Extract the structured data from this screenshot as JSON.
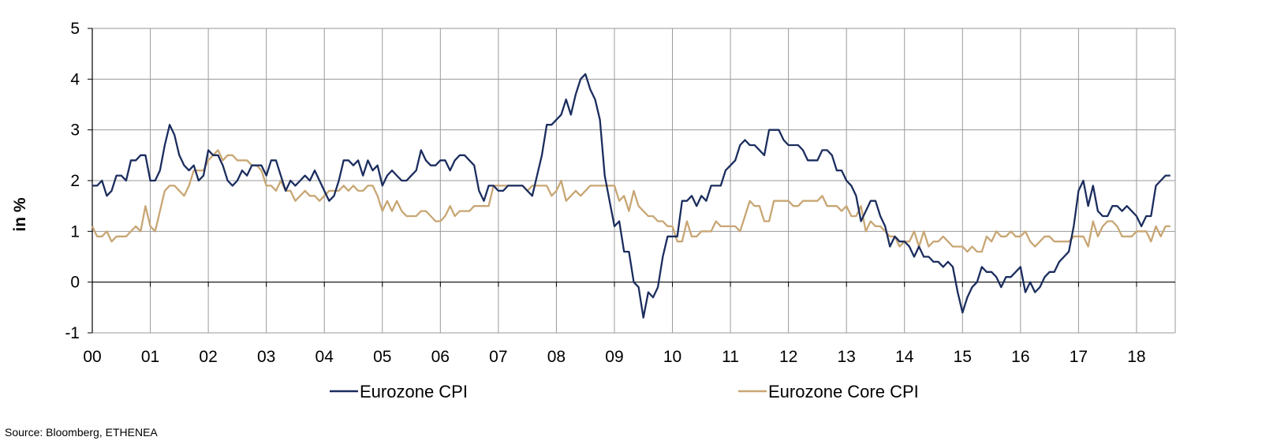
{
  "source": "Source: Bloomberg, ETHENEA",
  "chart_data": {
    "type": "line",
    "ylabel": "in %",
    "ylim": [
      -1,
      5
    ],
    "yticks": [
      -1,
      0,
      1,
      2,
      3,
      4,
      5
    ],
    "xlim": [
      2000.0,
      2018.667
    ],
    "xtick_labels": [
      "00",
      "01",
      "02",
      "03",
      "04",
      "05",
      "06",
      "07",
      "08",
      "09",
      "10",
      "11",
      "12",
      "13",
      "14",
      "15",
      "16",
      "17",
      "18"
    ],
    "grid": true,
    "legend_position": "bottom",
    "colors": {
      "Eurozone CPI": "#1b2d5e",
      "Eurozone Core CPI": "#c8a674"
    },
    "series": [
      {
        "name": "Eurozone CPI",
        "start": 2000.0,
        "step_months": 1,
        "values": [
          1.9,
          1.9,
          2.0,
          1.7,
          1.8,
          2.1,
          2.1,
          2.0,
          2.4,
          2.4,
          2.5,
          2.5,
          2.0,
          2.0,
          2.2,
          2.7,
          3.1,
          2.9,
          2.5,
          2.3,
          2.2,
          2.3,
          2.0,
          2.1,
          2.6,
          2.5,
          2.5,
          2.3,
          2.0,
          1.9,
          2.0,
          2.2,
          2.1,
          2.3,
          2.3,
          2.3,
          2.1,
          2.4,
          2.4,
          2.1,
          1.8,
          2.0,
          1.9,
          2.0,
          2.1,
          2.0,
          2.2,
          2.0,
          1.8,
          1.6,
          1.7,
          2.0,
          2.4,
          2.4,
          2.3,
          2.4,
          2.1,
          2.4,
          2.2,
          2.3,
          1.9,
          2.1,
          2.2,
          2.1,
          2.0,
          2.0,
          2.1,
          2.2,
          2.6,
          2.4,
          2.3,
          2.3,
          2.4,
          2.4,
          2.2,
          2.4,
          2.5,
          2.5,
          2.4,
          2.3,
          1.8,
          1.6,
          1.9,
          1.9,
          1.8,
          1.8,
          1.9,
          1.9,
          1.9,
          1.9,
          1.8,
          1.7,
          2.1,
          2.5,
          3.1,
          3.1,
          3.2,
          3.3,
          3.6,
          3.3,
          3.7,
          4.0,
          4.1,
          3.8,
          3.6,
          3.2,
          2.1,
          1.6,
          1.1,
          1.2,
          0.6,
          0.6,
          0.0,
          -0.1,
          -0.7,
          -0.2,
          -0.3,
          -0.1,
          0.5,
          0.9,
          0.9,
          0.9,
          1.6,
          1.6,
          1.7,
          1.5,
          1.7,
          1.6,
          1.9,
          1.9,
          1.9,
          2.2,
          2.3,
          2.4,
          2.7,
          2.8,
          2.7,
          2.7,
          2.6,
          2.5,
          3.0,
          3.0,
          3.0,
          2.8,
          2.7,
          2.7,
          2.7,
          2.6,
          2.4,
          2.4,
          2.4,
          2.6,
          2.6,
          2.5,
          2.2,
          2.2,
          2.0,
          1.9,
          1.7,
          1.2,
          1.4,
          1.6,
          1.6,
          1.3,
          1.1,
          0.7,
          0.9,
          0.8,
          0.8,
          0.7,
          0.5,
          0.7,
          0.5,
          0.5,
          0.4,
          0.4,
          0.3,
          0.4,
          0.3,
          -0.2,
          -0.6,
          -0.3,
          -0.1,
          0.0,
          0.3,
          0.2,
          0.2,
          0.1,
          -0.1,
          0.1,
          0.1,
          0.2,
          0.3,
          -0.2,
          0.0,
          -0.2,
          -0.1,
          0.1,
          0.2,
          0.2,
          0.4,
          0.5,
          0.6,
          1.1,
          1.8,
          2.0,
          1.5,
          1.9,
          1.4,
          1.3,
          1.3,
          1.5,
          1.5,
          1.4,
          1.5,
          1.4,
          1.3,
          1.1,
          1.3,
          1.3,
          1.9,
          2.0,
          2.1,
          2.1
        ]
      },
      {
        "name": "Eurozone Core CPI",
        "start": 2000.0,
        "step_months": 1,
        "values": [
          1.1,
          0.9,
          0.9,
          1.0,
          0.8,
          0.9,
          0.9,
          0.9,
          1.0,
          1.1,
          1.0,
          1.5,
          1.1,
          1.0,
          1.4,
          1.8,
          1.9,
          1.9,
          1.8,
          1.7,
          1.9,
          2.2,
          2.2,
          2.2,
          2.4,
          2.5,
          2.6,
          2.4,
          2.5,
          2.5,
          2.4,
          2.4,
          2.4,
          2.3,
          2.3,
          2.2,
          1.9,
          1.9,
          1.8,
          2.0,
          1.8,
          1.8,
          1.6,
          1.7,
          1.8,
          1.7,
          1.7,
          1.6,
          1.7,
          1.8,
          1.8,
          1.8,
          1.9,
          1.8,
          1.9,
          1.8,
          1.8,
          1.9,
          1.9,
          1.7,
          1.4,
          1.6,
          1.4,
          1.6,
          1.4,
          1.3,
          1.3,
          1.3,
          1.4,
          1.4,
          1.3,
          1.2,
          1.2,
          1.3,
          1.5,
          1.3,
          1.4,
          1.4,
          1.4,
          1.5,
          1.5,
          1.5,
          1.5,
          1.9,
          1.9,
          1.9,
          1.9,
          1.9,
          1.9,
          1.9,
          1.8,
          1.9,
          1.9,
          1.9,
          1.9,
          1.7,
          1.8,
          2.0,
          1.6,
          1.7,
          1.8,
          1.7,
          1.8,
          1.9,
          1.9,
          1.9,
          1.9,
          1.9,
          1.9,
          1.6,
          1.7,
          1.4,
          1.8,
          1.5,
          1.4,
          1.3,
          1.3,
          1.2,
          1.2,
          1.1,
          1.1,
          0.8,
          0.8,
          1.2,
          0.9,
          0.9,
          1.0,
          1.0,
          1.0,
          1.2,
          1.1,
          1.1,
          1.1,
          1.1,
          1.0,
          1.3,
          1.6,
          1.5,
          1.5,
          1.2,
          1.2,
          1.6,
          1.6,
          1.6,
          1.6,
          1.5,
          1.5,
          1.6,
          1.6,
          1.6,
          1.6,
          1.7,
          1.5,
          1.5,
          1.5,
          1.4,
          1.5,
          1.3,
          1.3,
          1.5,
          1.0,
          1.2,
          1.1,
          1.1,
          1.0,
          0.9,
          0.9,
          0.7,
          0.8,
          0.8,
          1.0,
          0.7,
          1.0,
          0.7,
          0.8,
          0.8,
          0.9,
          0.8,
          0.7,
          0.7,
          0.7,
          0.6,
          0.7,
          0.6,
          0.6,
          0.9,
          0.8,
          1.0,
          0.9,
          0.9,
          1.0,
          0.9,
          0.9,
          1.0,
          0.8,
          0.7,
          0.8,
          0.9,
          0.9,
          0.8,
          0.8,
          0.8,
          0.8,
          0.9,
          0.9,
          0.9,
          0.7,
          1.2,
          0.9,
          1.1,
          1.2,
          1.2,
          1.1,
          0.9,
          0.9,
          0.9,
          1.0,
          1.0,
          1.0,
          0.8,
          1.1,
          0.9,
          1.1,
          1.1
        ]
      }
    ]
  }
}
